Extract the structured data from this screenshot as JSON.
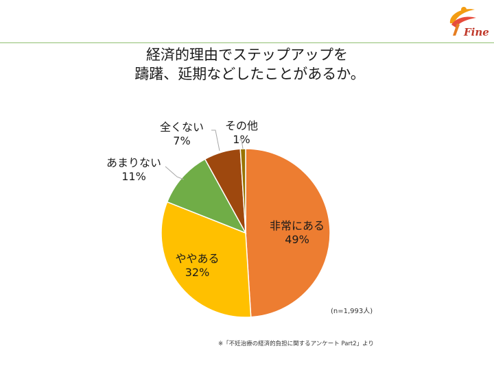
{
  "title": {
    "line1": "経済的理由でステップアップを",
    "line2": "躊躇、延期などしたことがあるか。"
  },
  "logo": {
    "text": "Fine"
  },
  "chart_data": {
    "type": "pie",
    "slices": [
      {
        "label": "非常にある",
        "value": 49,
        "percent_label": "49%",
        "color": "#ED7D31"
      },
      {
        "label": "ややある",
        "value": 32,
        "percent_label": "32%",
        "color": "#FFC000"
      },
      {
        "label": "あまりない",
        "value": 11,
        "percent_label": "11%",
        "color": "#70AD47"
      },
      {
        "label": "全くない",
        "value": 7,
        "percent_label": "7%",
        "color": "#9E480E"
      },
      {
        "label": "その他",
        "value": 1,
        "percent_label": "1%",
        "color": "#997300"
      }
    ],
    "start": "12 o'clock",
    "direction": "clockwise"
  },
  "sample_note": "(n=1,993人)",
  "source_note": "※「不妊治療の経済的負担に関するアンケート Part2」より",
  "colors": {
    "header_line": "#8fbf6f",
    "logo_accent": "#c0392b"
  }
}
